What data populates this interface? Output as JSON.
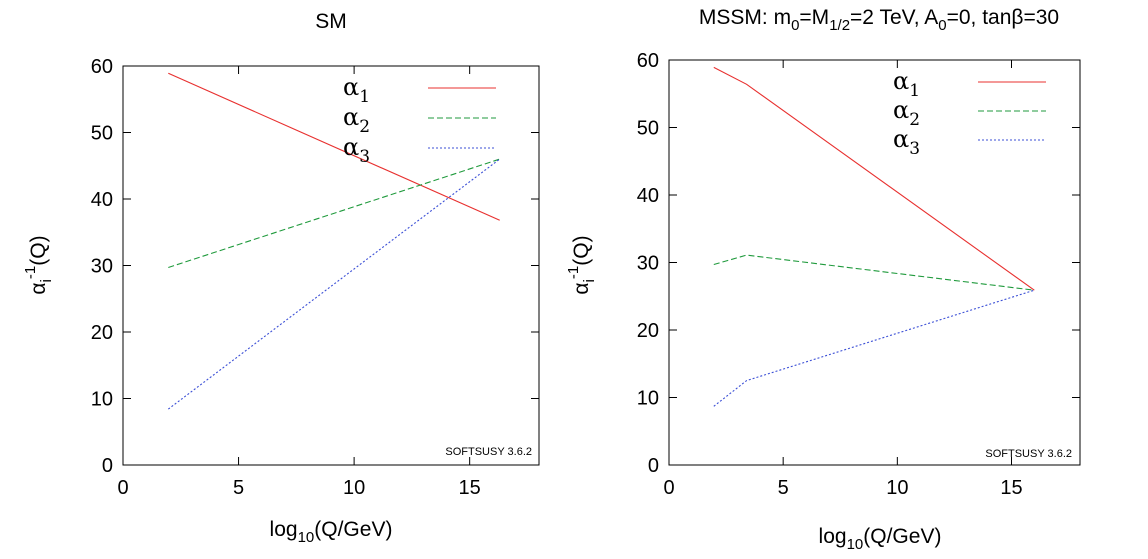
{
  "chart_data": [
    {
      "type": "line",
      "title": "SM",
      "xlabel": {
        "base": "log",
        "sub": "10",
        "rest": "(Q/GeV)"
      },
      "ylabel": {
        "base": "α",
        "sub": "i",
        "sup": "-1",
        "rest": "(Q)"
      },
      "xlim": [
        0,
        18
      ],
      "ylim": [
        0,
        60
      ],
      "xticks": [
        0,
        5,
        10,
        15
      ],
      "yticks": [
        0,
        10,
        20,
        30,
        40,
        50,
        60
      ],
      "grid": false,
      "legend_position": "top-right",
      "watermark": "SOFTSUSY 3.6.2",
      "series": [
        {
          "name": "α1",
          "name_base": "α",
          "name_sub": "1",
          "color": "#e8302f",
          "dash": "solid",
          "x": [
            1.96,
            16.3
          ],
          "y": [
            58.9,
            36.8
          ]
        },
        {
          "name": "α2",
          "name_base": "α",
          "name_sub": "2",
          "color": "#1f9a3c",
          "dash": "dashed",
          "x": [
            1.96,
            16.3
          ],
          "y": [
            29.7,
            46.0
          ]
        },
        {
          "name": "α3",
          "name_base": "α",
          "name_sub": "3",
          "color": "#3b4fd6",
          "dash": "dotted",
          "x": [
            1.96,
            16.3
          ],
          "y": [
            8.4,
            46.0
          ]
        }
      ]
    },
    {
      "type": "line",
      "title": {
        "p1": "MSSM: m",
        "s1": "0",
        "p2": "=M",
        "s2": "1/2",
        "p3": "=2 TeV, A",
        "s3": "0",
        "p4": "=0, tanβ=30"
      },
      "xlabel": {
        "base": "log",
        "sub": "10",
        "rest": "(Q/GeV)"
      },
      "ylabel": {
        "base": "α",
        "sub": "i",
        "sup": "-1",
        "rest": "(Q)"
      },
      "xlim": [
        0,
        18
      ],
      "ylim": [
        0,
        60
      ],
      "xticks": [
        0,
        5,
        10,
        15
      ],
      "yticks": [
        0,
        10,
        20,
        30,
        40,
        50,
        60
      ],
      "grid": false,
      "legend_position": "top-right",
      "watermark": "SOFTSUSY 3.6.2",
      "series": [
        {
          "name": "α1",
          "name_base": "α",
          "name_sub": "1",
          "color": "#e8302f",
          "dash": "solid",
          "x": [
            1.96,
            3.4,
            16.0
          ],
          "y": [
            58.9,
            56.4,
            25.9
          ]
        },
        {
          "name": "α2",
          "name_base": "α",
          "name_sub": "2",
          "color": "#1f9a3c",
          "dash": "dashed",
          "x": [
            1.96,
            3.4,
            16.0
          ],
          "y": [
            29.7,
            31.1,
            25.9
          ]
        },
        {
          "name": "α3",
          "name_base": "α",
          "name_sub": "3",
          "color": "#3b4fd6",
          "dash": "dotted",
          "x": [
            1.96,
            3.4,
            16.0
          ],
          "y": [
            8.7,
            12.5,
            25.9
          ]
        }
      ]
    }
  ]
}
